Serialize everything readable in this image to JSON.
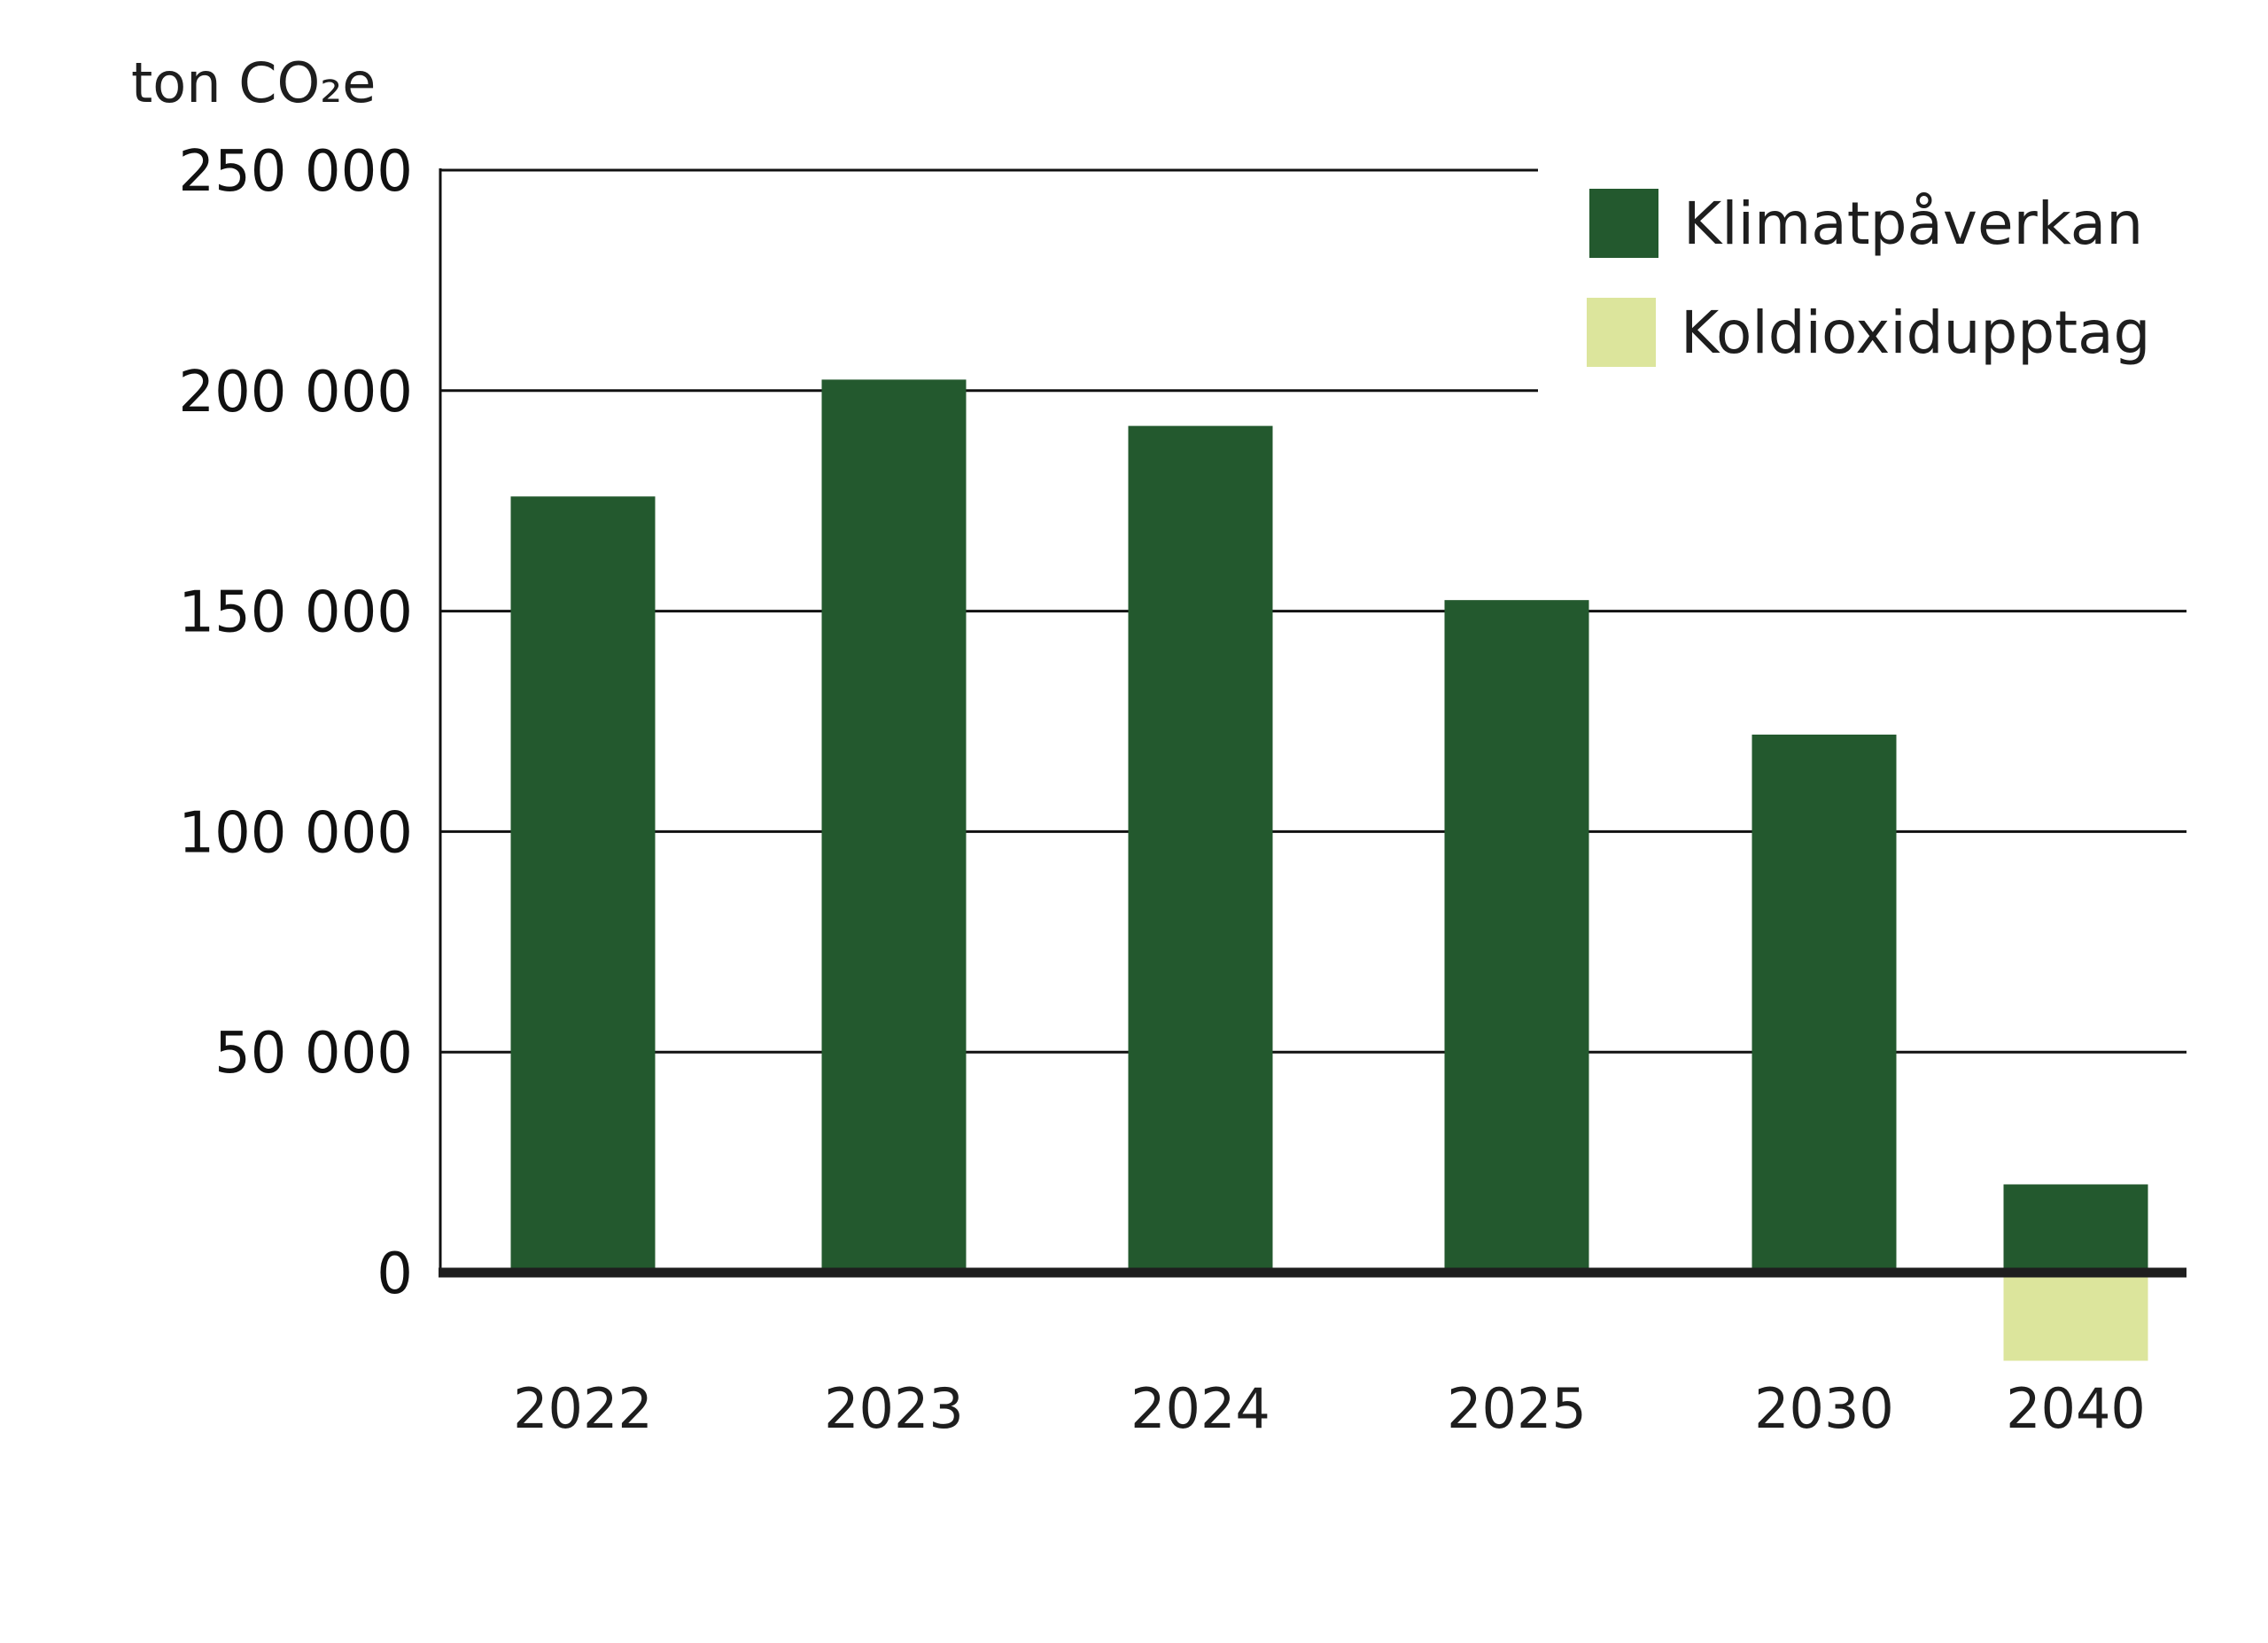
{
  "chart_data": {
    "type": "bar",
    "title": "",
    "ylabel": "ton CO₂e",
    "xlabel": "",
    "categories": [
      "2022",
      "2023",
      "2024",
      "2025",
      "2030",
      "2040"
    ],
    "series": [
      {
        "name": "Klimatpåverkan",
        "color": "#23592e",
        "values": [
          176000,
          202500,
          192000,
          152500,
          122000,
          20000
        ]
      },
      {
        "name": "Koldioxidupptag",
        "color": "#dce59c",
        "values": [
          null,
          null,
          null,
          null,
          null,
          -20000
        ]
      }
    ],
    "ylim": [
      -20000,
      250000
    ],
    "yticks": [
      0,
      50000,
      100000,
      150000,
      200000,
      250000
    ],
    "ytick_labels": [
      "0",
      "50 000",
      "100 000",
      "150 000",
      "200 000",
      "250 000"
    ],
    "grid": true,
    "legend_position": "top-right"
  }
}
